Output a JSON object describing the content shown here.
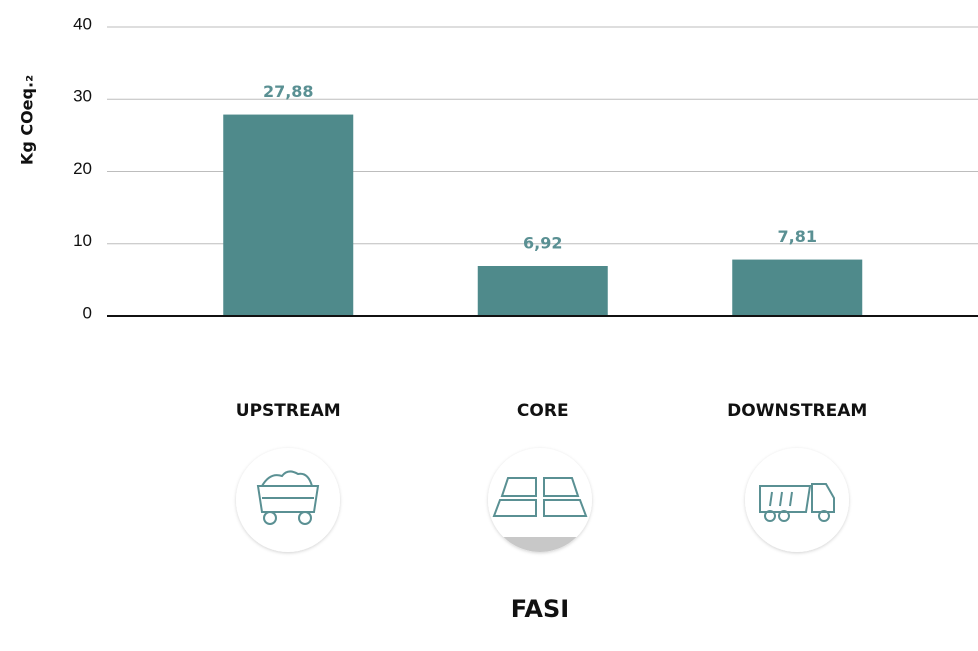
{
  "chart_data": {
    "type": "bar",
    "y_label": "Kg COeq.₂",
    "x_label": "FASI",
    "categories": [
      "UPSTREAM",
      "CORE",
      "DOWNSTREAM"
    ],
    "values": [
      27.88,
      6.92,
      7.81
    ],
    "value_labels": [
      "27,88",
      "6,92",
      "7,81"
    ],
    "color": "#4f8a8b",
    "ylim": [
      0,
      40
    ],
    "yticks": [
      0,
      10,
      20,
      30,
      40
    ],
    "grid": true
  }
}
